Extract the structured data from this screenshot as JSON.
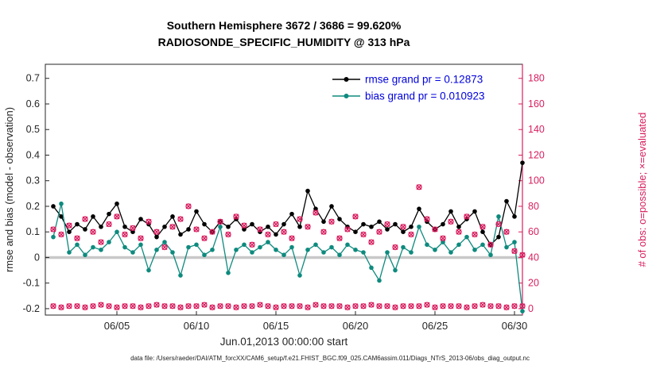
{
  "title": {
    "line1": "Southern Hemisphere 3672 / 3686 = 99.620%",
    "line2": "RADIOSONDE_SPECIFIC_HUMIDITY @ 313 hPa"
  },
  "footer": {
    "text": "data file: /Users/raeder/DAI/ATM_forcXX/CAM6_setup/f.e21.FHIST_BGC.f09_025.CAM6assim.011/Diags_NTrS_2013-06/obs_diag_output.nc"
  },
  "chart_data": {
    "type": "line",
    "title": "Southern Hemisphere 3672 / 3686 = 99.620%",
    "subtitle": "RADIOSONDE_SPECIFIC_HUMIDITY @ 313 hPa",
    "xlabel": "Jun.01,2013 00:00:00 start",
    "x_axis": {
      "min": -0.5,
      "max": 29.5,
      "ticks": [
        {
          "day": 4,
          "label": "06/05"
        },
        {
          "day": 9,
          "label": "06/10"
        },
        {
          "day": 14,
          "label": "06/15"
        },
        {
          "day": 19,
          "label": "06/20"
        },
        {
          "day": 24,
          "label": "06/25"
        },
        {
          "day": 29,
          "label": "06/30"
        }
      ]
    },
    "left_axis": {
      "label": "rmse and bias (model - observation)",
      "min": -0.225,
      "max": 0.755,
      "ticks": [
        -0.2,
        -0.1,
        0,
        0.1,
        0.2,
        0.3,
        0.4,
        0.5,
        0.6,
        0.7
      ],
      "color": "#262626"
    },
    "right_axis": {
      "label": "# of obs: o=possible; ×=evaluated",
      "min": -5,
      "max": 191,
      "ticks": [
        0,
        20,
        40,
        60,
        80,
        100,
        120,
        140,
        160,
        180
      ],
      "color": "#d81e5f"
    },
    "zero_line": {
      "value": 0,
      "color": "#c8c8c8",
      "width": 3.5
    },
    "legend": {
      "text_color": "#0000dd",
      "entries": [
        0,
        1
      ]
    },
    "x_days": [
      0,
      0.5,
      1,
      1.5,
      2,
      2.5,
      3,
      3.5,
      4,
      4.5,
      5,
      5.5,
      6,
      6.5,
      7,
      7.5,
      8,
      8.5,
      9,
      9.5,
      10,
      10.5,
      11,
      11.5,
      12,
      12.5,
      13,
      13.5,
      14,
      14.5,
      15,
      15.5,
      16,
      16.5,
      17,
      17.5,
      18,
      18.5,
      19,
      19.5,
      20,
      20.5,
      21,
      21.5,
      22,
      22.5,
      23,
      23.5,
      24,
      24.5,
      25,
      25.5,
      26,
      26.5,
      27,
      27.5,
      28,
      28.5,
      29,
      29.5
    ],
    "series": [
      {
        "name": "rmse",
        "legend_label": "rmse grand pr = 0.12873",
        "color": "#000000",
        "axis": "left",
        "marker": "filled-circle",
        "line": true,
        "values": [
          0.2,
          0.16,
          0.1,
          0.13,
          0.11,
          0.16,
          0.12,
          0.17,
          0.21,
          0.12,
          0.1,
          0.15,
          0.13,
          0.08,
          0.12,
          0.16,
          0.09,
          0.11,
          0.18,
          0.13,
          0.1,
          0.14,
          0.12,
          0.15,
          0.11,
          0.13,
          0.1,
          0.12,
          0.09,
          0.13,
          0.17,
          0.12,
          0.26,
          0.19,
          0.14,
          0.2,
          0.15,
          0.12,
          0.1,
          0.13,
          0.12,
          0.14,
          0.11,
          0.13,
          0.1,
          0.12,
          0.19,
          0.14,
          0.11,
          0.13,
          0.18,
          0.12,
          0.15,
          0.18,
          0.1,
          0.05,
          0.08,
          0.22,
          0.16,
          0.37
        ]
      },
      {
        "name": "bias",
        "legend_label": "bias grand pr = 0.010923",
        "color": "#0e8a7e",
        "axis": "left",
        "marker": "filled-circle",
        "line": true,
        "values": [
          0.08,
          0.21,
          0.02,
          0.05,
          0.01,
          0.04,
          0.03,
          0.06,
          0.1,
          0.04,
          0.02,
          0.05,
          -0.05,
          0.03,
          0.06,
          0.02,
          -0.07,
          0.04,
          0.05,
          0.01,
          0.03,
          0.12,
          -0.06,
          0.03,
          0.05,
          0.02,
          0.04,
          0.06,
          0.03,
          0.01,
          0.04,
          -0.07,
          0.03,
          0.05,
          0.02,
          0.04,
          0.01,
          0.05,
          0.03,
          0.02,
          -0.04,
          -0.09,
          0.02,
          -0.05,
          0.04,
          0.02,
          0.12,
          0.05,
          0.03,
          0.06,
          0.02,
          0.05,
          0.08,
          0.03,
          0.05,
          0.01,
          0.16,
          0.04,
          0.06,
          -0.21
        ]
      },
      {
        "name": "obs-count-possible-evaluated",
        "color": "#d81e5f",
        "axis": "right",
        "marker": "o-and-x",
        "line": false,
        "values": [
          62,
          58,
          65,
          55,
          70,
          60,
          52,
          66,
          72,
          58,
          63,
          55,
          68,
          60,
          48,
          64,
          70,
          80,
          62,
          55,
          60,
          68,
          58,
          72,
          65,
          50,
          62,
          58,
          66,
          60,
          55,
          70,
          64,
          75,
          60,
          68,
          55,
          62,
          72,
          58,
          52,
          60,
          66,
          48,
          64,
          58,
          95,
          70,
          62,
          55,
          68,
          60,
          72,
          58,
          64,
          50,
          66,
          60,
          45,
          42
        ]
      },
      {
        "name": "obs-count-bottom-row",
        "color": "#d81e5f",
        "axis": "right",
        "marker": "o-and-x",
        "line": false,
        "values": [
          2,
          1,
          2,
          2,
          1,
          2,
          3,
          2,
          1,
          2,
          2,
          1,
          2,
          3,
          2,
          2,
          1,
          2,
          2,
          3,
          1,
          2,
          2,
          1,
          2,
          2,
          3,
          2,
          1,
          2,
          2,
          2,
          1,
          3,
          2,
          2,
          2,
          1,
          2,
          2,
          3,
          2,
          2,
          1,
          2,
          2,
          2,
          3,
          1,
          2,
          2,
          2,
          1,
          2,
          3,
          2,
          2,
          1,
          2,
          2
        ]
      }
    ]
  }
}
